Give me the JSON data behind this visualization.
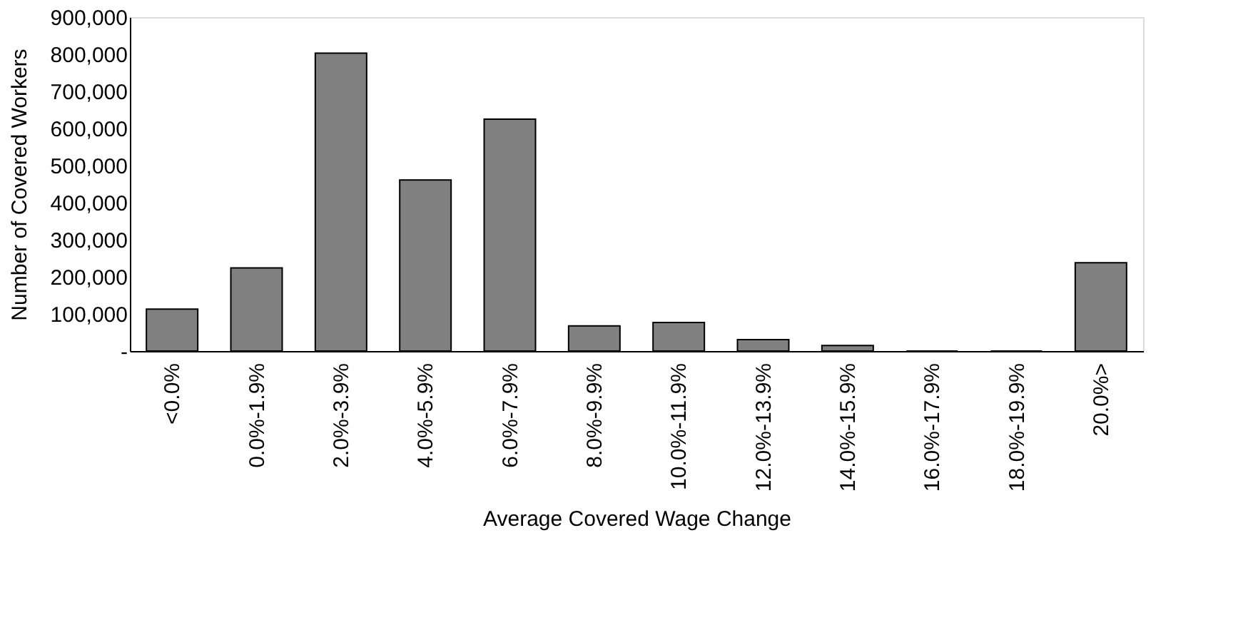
{
  "chart_data": {
    "type": "bar",
    "xlabel": "Average Covered Wage Change",
    "ylabel": "Number of Covered Workers",
    "categories": [
      "<0.0%",
      "0.0%-1.9%",
      "2.0%-3.9%",
      "4.0%-5.9%",
      "6.0%-7.9%",
      "8.0%-9.9%",
      "10.0%-11.9%",
      "12.0%-13.9%",
      "14.0%-15.9%",
      "16.0%-17.9%",
      "18.0%-19.9%",
      "20.0%>"
    ],
    "values": [
      113000,
      224000,
      803000,
      461000,
      625000,
      68000,
      77000,
      31000,
      15000,
      0,
      0,
      238000
    ],
    "color": "#808080",
    "ylim": [
      0,
      900000
    ],
    "yticks": [
      {
        "value": 0,
        "label": "-"
      },
      {
        "value": 100000,
        "label": "100,000"
      },
      {
        "value": 200000,
        "label": "200,000"
      },
      {
        "value": 300000,
        "label": "300,000"
      },
      {
        "value": 400000,
        "label": "400,000"
      },
      {
        "value": 500000,
        "label": "500,000"
      },
      {
        "value": 600000,
        "label": "600,000"
      },
      {
        "value": 700000,
        "label": "700,000"
      },
      {
        "value": 800000,
        "label": "800,000"
      },
      {
        "value": 900000,
        "label": "900,000"
      }
    ],
    "grid": false
  }
}
